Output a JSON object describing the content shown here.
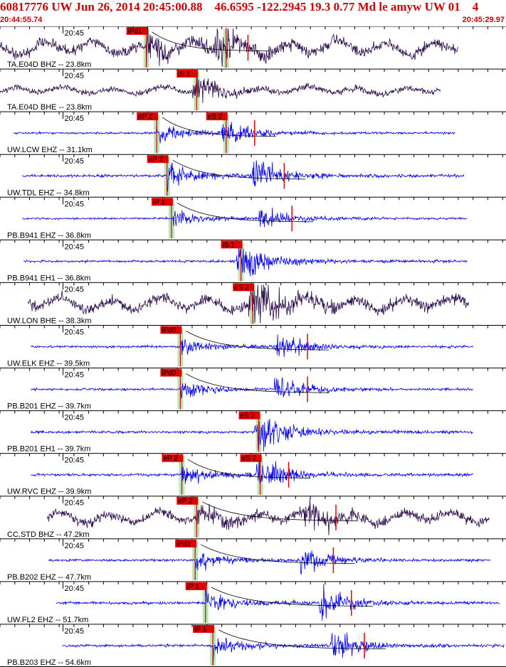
{
  "header": {
    "title": "60817776 UW Jun 26, 2014 20:45:00.88    46.6595 -122.2945 19.3 0.77 Md le amyw UW 01    4",
    "start_time": "20:44:55.74",
    "end_time": "20:45:29.97"
  },
  "colors": {
    "trace_broadband": "#2a0a4a",
    "trace_short_period": "#0000ee",
    "pick": "#e00000",
    "pick_window": "#b8e6b8",
    "decay_curve": "#000000",
    "tick": "#000000",
    "title": "#c80000"
  },
  "chart_data": {
    "type": "seismogram",
    "x_range_s": [
      0,
      34.23
    ],
    "minute_tick_label": "20:45",
    "minute_tick_time_s": 4.26,
    "traces": [
      {
        "label": "TA.E04D BHZ -- 23.8km",
        "kind": "broadband",
        "start_s": 0.0,
        "end_s": 31.0,
        "amp": 0.35,
        "picks": [
          {
            "text": "iPd1",
            "time_s": 9.9
          },
          {
            "text": "",
            "time_s": 15.3
          }
        ]
      },
      {
        "label": "TA.E04D BHE -- 23.8km",
        "kind": "broadband",
        "start_s": 0.0,
        "end_s": 29.8,
        "amp": 0.18,
        "picks": [
          {
            "text": "iS 1",
            "time_s": 13.3
          }
        ]
      },
      {
        "label": "UW.LCW EHZ -- 31.1km",
        "kind": "short",
        "start_s": 0.9,
        "end_s": 30.8,
        "amp": 0.3,
        "picks": [
          {
            "text": "eP 2",
            "time_s": 10.6
          },
          {
            "text": "eS 2",
            "time_s": 15.3
          }
        ]
      },
      {
        "label": "UW.TDL EHZ -- 34.8km",
        "kind": "short",
        "start_s": 1.5,
        "end_s": 31.4,
        "amp": 0.35,
        "picks": [
          {
            "text": "eP 2",
            "time_s": 11.3
          }
        ]
      },
      {
        "label": "PB.B941 EHZ -- 36.8km",
        "kind": "short",
        "start_s": 1.5,
        "end_s": 31.6,
        "amp": 0.25,
        "picks": [
          {
            "text": "iP 1",
            "time_s": 11.6
          }
        ]
      },
      {
        "label": "PB.B941 EH1 -- 36.8km",
        "kind": "short",
        "start_s": 1.6,
        "end_s": 31.6,
        "amp": 0.3,
        "picks": [
          {
            "text": "iS 1",
            "time_s": 16.3
          }
        ]
      },
      {
        "label": "UW.LON BHE -- 38.3km",
        "kind": "broadband",
        "start_s": 1.9,
        "end_s": 31.7,
        "amp": 0.35,
        "picks": [
          {
            "text": "eS 2",
            "time_s": 17.1
          }
        ]
      },
      {
        "label": "UW.ELK EHZ -- 39.5km",
        "kind": "short",
        "start_s": 2.1,
        "end_s": 32.0,
        "amp": 0.3,
        "picks": [
          {
            "text": "iPd0",
            "time_s": 12.2
          }
        ]
      },
      {
        "label": "PB.B201 EHZ -- 39.7km",
        "kind": "short",
        "start_s": 2.1,
        "end_s": 32.0,
        "amp": 0.3,
        "picks": [
          {
            "text": "iPd0",
            "time_s": 12.2
          }
        ]
      },
      {
        "label": "PB.B201 EH1 -- 39.7km",
        "kind": "short",
        "start_s": 2.1,
        "end_s": 32.0,
        "amp": 0.35,
        "picks": [
          {
            "text": "eS 2",
            "time_s": 17.5
          }
        ]
      },
      {
        "label": "UW.RVC EHZ -- 39.9km",
        "kind": "short",
        "start_s": 2.1,
        "end_s": 32.0,
        "amp": 0.35,
        "picks": [
          {
            "text": "eP 2",
            "time_s": 12.3
          },
          {
            "text": "eS 2",
            "time_s": 17.6
          }
        ]
      },
      {
        "label": "CC.STD BHZ -- 47.2km",
        "kind": "broadband",
        "start_s": 3.2,
        "end_s": 33.1,
        "amp": 0.3,
        "picks": [
          {
            "text": "eP 2",
            "time_s": 13.3
          }
        ]
      },
      {
        "label": "PB.B202 EHZ -- 47.7km",
        "kind": "short",
        "start_s": 3.3,
        "end_s": 33.2,
        "amp": 0.3,
        "picks": [
          {
            "text": "iPd1",
            "time_s": 13.2
          }
        ]
      },
      {
        "label": "UW.FL2 EHZ -- 51.7km",
        "kind": "short",
        "start_s": 3.8,
        "end_s": 33.8,
        "amp": 0.35,
        "picks": [
          {
            "text": "iP 1",
            "time_s": 13.9
          }
        ]
      },
      {
        "label": "PB.B203 EHZ -- 54.6km",
        "kind": "short",
        "start_s": 4.2,
        "end_s": 34.1,
        "amp": 0.35,
        "picks": [
          {
            "text": "iP 1",
            "time_s": 14.4
          }
        ]
      }
    ]
  }
}
